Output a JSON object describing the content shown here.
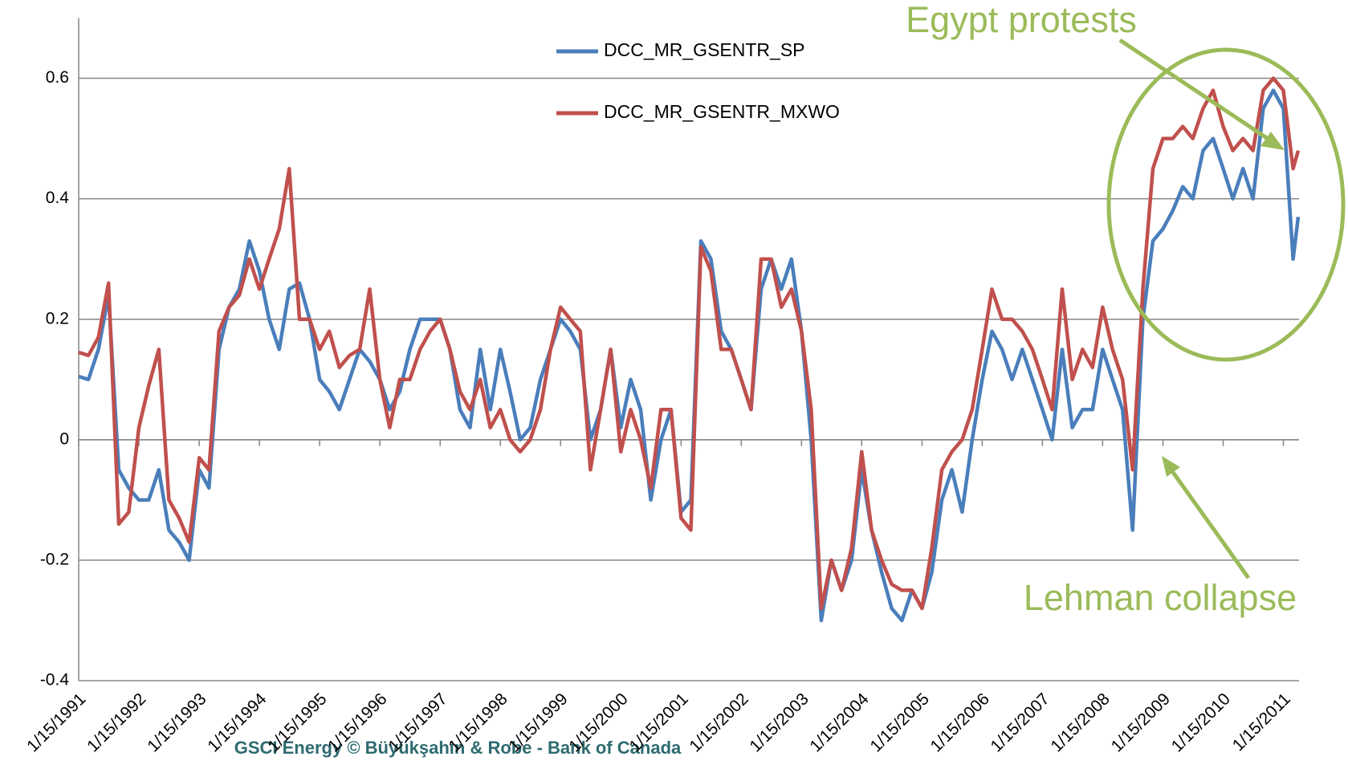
{
  "chart_data": {
    "type": "line",
    "x": [
      "1991-01-15",
      "1991-03-15",
      "1991-05-15",
      "1991-07-15",
      "1991-09-15",
      "1991-11-15",
      "1992-01-15",
      "1992-03-15",
      "1992-05-15",
      "1992-07-15",
      "1992-09-15",
      "1992-11-15",
      "1993-01-15",
      "1993-03-15",
      "1993-05-15",
      "1993-07-15",
      "1993-09-15",
      "1993-11-15",
      "1994-01-15",
      "1994-03-15",
      "1994-05-15",
      "1994-07-15",
      "1994-09-15",
      "1994-11-15",
      "1995-01-15",
      "1995-03-15",
      "1995-05-15",
      "1995-07-15",
      "1995-09-15",
      "1995-11-15",
      "1996-01-15",
      "1996-03-15",
      "1996-05-15",
      "1996-07-15",
      "1996-09-15",
      "1996-11-15",
      "1997-01-15",
      "1997-03-15",
      "1997-05-15",
      "1997-07-15",
      "1997-09-15",
      "1997-11-15",
      "1998-01-15",
      "1998-03-15",
      "1998-05-15",
      "1998-07-15",
      "1998-09-15",
      "1998-11-15",
      "1999-01-15",
      "1999-03-15",
      "1999-05-15",
      "1999-07-15",
      "1999-09-15",
      "1999-11-15",
      "2000-01-15",
      "2000-03-15",
      "2000-05-15",
      "2000-07-15",
      "2000-09-15",
      "2000-11-15",
      "2001-01-15",
      "2001-03-15",
      "2001-05-15",
      "2001-07-15",
      "2001-09-15",
      "2001-11-15",
      "2002-01-15",
      "2002-03-15",
      "2002-05-15",
      "2002-07-15",
      "2002-09-15",
      "2002-11-15",
      "2003-01-15",
      "2003-03-15",
      "2003-05-15",
      "2003-07-15",
      "2003-09-15",
      "2003-11-15",
      "2004-01-15",
      "2004-03-15",
      "2004-05-15",
      "2004-07-15",
      "2004-09-15",
      "2004-11-15",
      "2005-01-15",
      "2005-03-15",
      "2005-05-15",
      "2005-07-15",
      "2005-09-15",
      "2005-11-15",
      "2006-01-15",
      "2006-03-15",
      "2006-05-15",
      "2006-07-15",
      "2006-09-15",
      "2006-11-15",
      "2007-01-15",
      "2007-03-15",
      "2007-05-15",
      "2007-07-15",
      "2007-09-15",
      "2007-11-15",
      "2008-01-15",
      "2008-03-15",
      "2008-05-15",
      "2008-07-15",
      "2008-09-15",
      "2008-11-15",
      "2009-01-15",
      "2009-03-15",
      "2009-05-15",
      "2009-07-15",
      "2009-09-15",
      "2009-11-15",
      "2010-01-15",
      "2010-03-15",
      "2010-05-15",
      "2010-07-15",
      "2010-09-15",
      "2010-11-15",
      "2011-01-15",
      "2011-03-15",
      "2011-04-15"
    ],
    "series": [
      {
        "name": "DCC_MR_GSENTR_SP",
        "color": "#4a7ebb",
        "values": [
          0.105,
          0.1,
          0.15,
          0.24,
          -0.05,
          -0.08,
          -0.1,
          -0.1,
          -0.05,
          -0.15,
          -0.17,
          -0.2,
          -0.05,
          -0.08,
          0.15,
          0.22,
          0.25,
          0.33,
          0.28,
          0.2,
          0.15,
          0.25,
          0.26,
          0.2,
          0.1,
          0.08,
          0.05,
          0.1,
          0.15,
          0.13,
          0.1,
          0.05,
          0.08,
          0.15,
          0.2,
          0.2,
          0.2,
          0.15,
          0.05,
          0.02,
          0.15,
          0.05,
          0.15,
          0.08,
          0.0,
          0.02,
          0.1,
          0.15,
          0.2,
          0.18,
          0.15,
          0.0,
          0.05,
          0.15,
          0.02,
          0.1,
          0.05,
          -0.1,
          0.0,
          0.05,
          -0.12,
          -0.1,
          0.33,
          0.3,
          0.18,
          0.15,
          0.1,
          0.05,
          0.25,
          0.3,
          0.25,
          0.3,
          0.18,
          0.0,
          -0.3,
          -0.2,
          -0.25,
          -0.2,
          -0.05,
          -0.15,
          -0.22,
          -0.28,
          -0.3,
          -0.25,
          -0.28,
          -0.22,
          -0.1,
          -0.05,
          -0.12,
          0.0,
          0.1,
          0.18,
          0.15,
          0.1,
          0.15,
          0.1,
          0.05,
          0.0,
          0.15,
          0.02,
          0.05,
          0.05,
          0.15,
          0.1,
          0.05,
          -0.15,
          0.2,
          0.33,
          0.35,
          0.38,
          0.42,
          0.4,
          0.48,
          0.5,
          0.45,
          0.4,
          0.45,
          0.4,
          0.55,
          0.58,
          0.55,
          0.3,
          0.37
        ]
      },
      {
        "name": "DCC_MR_GSENTR_MXWO",
        "color": "#c0504d",
        "values": [
          0.145,
          0.14,
          0.17,
          0.26,
          -0.14,
          -0.12,
          0.02,
          0.09,
          0.15,
          -0.1,
          -0.13,
          -0.17,
          -0.03,
          -0.05,
          0.18,
          0.22,
          0.24,
          0.3,
          0.25,
          0.3,
          0.35,
          0.45,
          0.2,
          0.2,
          0.15,
          0.18,
          0.12,
          0.14,
          0.15,
          0.25,
          0.1,
          0.02,
          0.1,
          0.1,
          0.15,
          0.18,
          0.2,
          0.15,
          0.08,
          0.05,
          0.1,
          0.02,
          0.05,
          0.0,
          -0.02,
          0.0,
          0.05,
          0.15,
          0.22,
          0.2,
          0.18,
          -0.05,
          0.05,
          0.15,
          -0.02,
          0.05,
          0.0,
          -0.08,
          0.05,
          0.05,
          -0.13,
          -0.15,
          0.32,
          0.28,
          0.15,
          0.15,
          0.1,
          0.05,
          0.3,
          0.3,
          0.22,
          0.25,
          0.18,
          0.05,
          -0.28,
          -0.2,
          -0.25,
          -0.18,
          -0.02,
          -0.15,
          -0.2,
          -0.24,
          -0.25,
          -0.25,
          -0.28,
          -0.18,
          -0.05,
          -0.02,
          0.0,
          0.05,
          0.15,
          0.25,
          0.2,
          0.2,
          0.18,
          0.15,
          0.1,
          0.05,
          0.25,
          0.1,
          0.15,
          0.12,
          0.22,
          0.15,
          0.1,
          -0.05,
          0.25,
          0.45,
          0.5,
          0.5,
          0.52,
          0.5,
          0.55,
          0.58,
          0.52,
          0.48,
          0.5,
          0.48,
          0.58,
          0.6,
          0.58,
          0.45,
          0.48
        ]
      }
    ],
    "xlim": [
      "1991-01-15",
      "2011-04-20"
    ],
    "xticks": [
      {
        "value": "1991-01-15",
        "label": "1/15/1991"
      },
      {
        "value": "1992-01-15",
        "label": "1/15/1992"
      },
      {
        "value": "1993-01-15",
        "label": "1/15/1993"
      },
      {
        "value": "1994-01-15",
        "label": "1/15/1994"
      },
      {
        "value": "1995-01-15",
        "label": "1/15/1995"
      },
      {
        "value": "1996-01-15",
        "label": "1/15/1996"
      },
      {
        "value": "1997-01-15",
        "label": "1/15/1997"
      },
      {
        "value": "1998-01-15",
        "label": "1/15/1998"
      },
      {
        "value": "1999-01-15",
        "label": "1/15/1999"
      },
      {
        "value": "2000-01-15",
        "label": "1/15/2000"
      },
      {
        "value": "2001-01-15",
        "label": "1/15/2001"
      },
      {
        "value": "2002-01-15",
        "label": "1/15/2002"
      },
      {
        "value": "2003-01-15",
        "label": "1/15/2003"
      },
      {
        "value": "2004-01-15",
        "label": "1/15/2004"
      },
      {
        "value": "2005-01-15",
        "label": "1/15/2005"
      },
      {
        "value": "2006-01-15",
        "label": "1/15/2006"
      },
      {
        "value": "2007-01-15",
        "label": "1/15/2007"
      },
      {
        "value": "2008-01-15",
        "label": "1/15/2008"
      },
      {
        "value": "2009-01-15",
        "label": "1/15/2009"
      },
      {
        "value": "2010-01-15",
        "label": "1/15/2010"
      },
      {
        "value": "2011-01-15",
        "label": "1/15/2011"
      }
    ],
    "ylim": [
      -0.4,
      0.7
    ],
    "yticks": [
      -0.4,
      -0.2,
      0,
      0.2,
      0.4,
      0.6
    ],
    "grid": true,
    "annotations": [
      "Egypt protests",
      "Lehman collapse"
    ],
    "footer": "GSCI Energy © Büyükşahin & Robe - Bank of Canada"
  }
}
